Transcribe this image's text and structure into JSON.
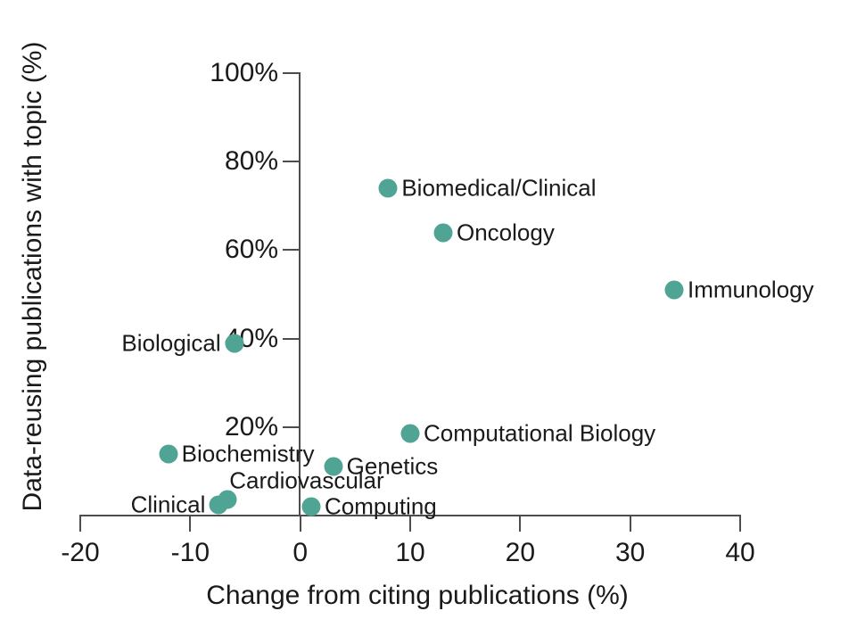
{
  "chart_data": {
    "type": "scatter",
    "title": "",
    "xlabel": "Change from citing publications (%)",
    "ylabel": "Data-reusing publications with topic (%)",
    "xlim": [
      -20,
      40
    ],
    "ylim": [
      0,
      100
    ],
    "grid": false,
    "legend": false,
    "point_color": "#50a493",
    "axis_color": "#4d4d4d",
    "text_color": "#1a1a1a",
    "x_ticks": [
      {
        "value": -20,
        "label": "-20"
      },
      {
        "value": -10,
        "label": "-10"
      },
      {
        "value": 0,
        "label": "0"
      },
      {
        "value": 10,
        "label": "10"
      },
      {
        "value": 20,
        "label": "20"
      },
      {
        "value": 30,
        "label": "30"
      },
      {
        "value": 40,
        "label": "40"
      }
    ],
    "y_ticks": [
      {
        "value": 100,
        "label": "100%"
      },
      {
        "value": 80,
        "label": "80%"
      },
      {
        "value": 60,
        "label": "60%"
      },
      {
        "value": 40,
        "label": "40%"
      },
      {
        "value": 20,
        "label": "20%"
      }
    ],
    "points": [
      {
        "label": "Biomedical/Clinical",
        "x": 8,
        "y": 74,
        "label_side": "right"
      },
      {
        "label": "Oncology",
        "x": 13,
        "y": 64,
        "label_side": "right"
      },
      {
        "label": "Immunology",
        "x": 34,
        "y": 51,
        "label_side": "right"
      },
      {
        "label": "Biological",
        "x": -6,
        "y": 39,
        "label_side": "left"
      },
      {
        "label": "Computational Biology",
        "x": 10,
        "y": 18.5,
        "label_side": "right"
      },
      {
        "label": "Biochemistry",
        "x": -12,
        "y": 14,
        "label_side": "right"
      },
      {
        "label": "Genetics",
        "x": 3,
        "y": 11,
        "label_side": "right"
      },
      {
        "label": "Cardiovascular",
        "x": -6.6,
        "y": 3.6,
        "label_side": "above"
      },
      {
        "label": "Clinical",
        "x": -7.4,
        "y": 2.5,
        "label_side": "left"
      },
      {
        "label": "Computing",
        "x": 1,
        "y": 2,
        "label_side": "right"
      }
    ]
  }
}
